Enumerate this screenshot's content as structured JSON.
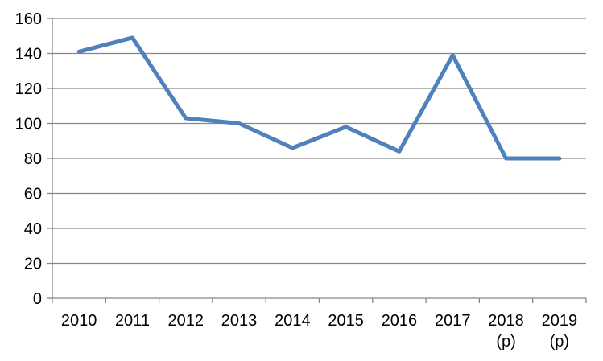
{
  "chart_data": {
    "type": "line",
    "categories": [
      "2010",
      "2011",
      "2012",
      "2013",
      "2014",
      "2015",
      "2016",
      "2017",
      "2018 (p)",
      "2019 (p)"
    ],
    "values": [
      141,
      149,
      103,
      100,
      86,
      98,
      84,
      139,
      80,
      80
    ],
    "title": "",
    "xlabel": "",
    "ylabel": "",
    "ylim": [
      0,
      160
    ],
    "ytick_step": 20,
    "ytick_labels": [
      "0",
      "20",
      "40",
      "60",
      "80",
      "100",
      "120",
      "140",
      "160"
    ],
    "grid": true,
    "legend_position": "none",
    "colors": {
      "line": "#4F81BD",
      "gridline": "#868686",
      "axis": "#868686",
      "tick_text": "#000000",
      "background": "#FFFFFF"
    }
  }
}
